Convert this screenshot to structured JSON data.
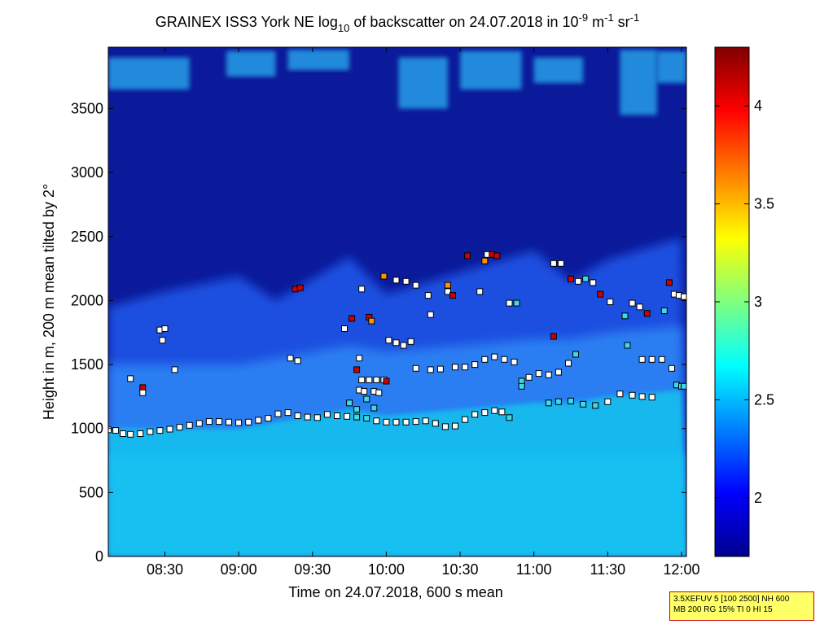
{
  "chart_data": {
    "type": "heatmap",
    "title": {
      "prefix": "GRAINEX ISS3 York NE log",
      "log_sub": "10",
      "middle": " of backscatter on 24.07.2018 in 10",
      "exp1": "-9",
      "unit_m": " m",
      "exp2": "-1",
      "unit_sr": " sr",
      "exp3": "-1"
    },
    "xlabel": "Time on 24.07.2018, 600 s mean",
    "ylabel": "Height in m, 200 m mean tilted by 2°",
    "x_range": [
      "08:07",
      "12:02"
    ],
    "y_range": [
      0,
      3980
    ],
    "x_ticks": [
      "08:30",
      "09:00",
      "09:30",
      "10:00",
      "10:30",
      "11:00",
      "11:30",
      "12:00"
    ],
    "y_ticks": [
      0,
      500,
      1000,
      1500,
      2000,
      2500,
      3000,
      3500
    ],
    "colorbar": {
      "range": [
        1.7,
        4.3
      ],
      "ticks": [
        2,
        2.5,
        3,
        3.5,
        4
      ],
      "colormap": "jet"
    },
    "field_description": {
      "boundary_layer_top_m": [
        1000,
        1000,
        1000,
        1050,
        1100,
        1150,
        1100,
        1150,
        1200,
        1200,
        1250,
        1300
      ],
      "times": [
        "08:07",
        "08:30",
        "09:00",
        "09:15",
        "09:30",
        "09:45",
        "10:00",
        "10:30",
        "11:00",
        "11:15",
        "11:30",
        "12:00"
      ]
    },
    "series": [
      {
        "marker": "square",
        "points": [
          {
            "t": "08:07",
            "h": 990,
            "c": 1.0
          },
          {
            "t": "08:10",
            "h": 985,
            "c": 1.0
          },
          {
            "t": "08:13",
            "h": 960,
            "c": 1.0
          },
          {
            "t": "08:16",
            "h": 955,
            "c": 1.0
          },
          {
            "t": "08:20",
            "h": 960,
            "c": 1.0
          },
          {
            "t": "08:24",
            "h": 975,
            "c": 1.0
          },
          {
            "t": "08:28",
            "h": 985,
            "c": 1.0
          },
          {
            "t": "08:32",
            "h": 995,
            "c": 1.0
          },
          {
            "t": "08:36",
            "h": 1010,
            "c": 1.0
          },
          {
            "t": "08:40",
            "h": 1025,
            "c": 1.0
          },
          {
            "t": "08:44",
            "h": 1040,
            "c": 1.0
          },
          {
            "t": "08:48",
            "h": 1055,
            "c": 1.0
          },
          {
            "t": "08:52",
            "h": 1055,
            "c": 1.0
          },
          {
            "t": "08:56",
            "h": 1050,
            "c": 1.0
          },
          {
            "t": "09:00",
            "h": 1045,
            "c": 1.0
          },
          {
            "t": "09:04",
            "h": 1050,
            "c": 1.0
          },
          {
            "t": "09:08",
            "h": 1065,
            "c": 1.0
          },
          {
            "t": "09:12",
            "h": 1080,
            "c": 1.0
          },
          {
            "t": "09:16",
            "h": 1115,
            "c": 1.0
          },
          {
            "t": "09:20",
            "h": 1125,
            "c": 1.0
          },
          {
            "t": "09:24",
            "h": 1100,
            "c": 1.0
          },
          {
            "t": "09:28",
            "h": 1090,
            "c": 1.0
          },
          {
            "t": "09:32",
            "h": 1085,
            "c": 1.0
          },
          {
            "t": "09:36",
            "h": 1110,
            "c": 1.0
          },
          {
            "t": "09:40",
            "h": 1100,
            "c": 1.0
          },
          {
            "t": "09:44",
            "h": 1095,
            "c": 1.0
          },
          {
            "t": "09:48",
            "h": 1090,
            "c": 0.6
          },
          {
            "t": "09:52",
            "h": 1080,
            "c": 0.6
          },
          {
            "t": "09:56",
            "h": 1060,
            "c": 1.0
          },
          {
            "t": "10:00",
            "h": 1050,
            "c": 1.0
          },
          {
            "t": "10:04",
            "h": 1050,
            "c": 1.0
          },
          {
            "t": "10:08",
            "h": 1050,
            "c": 1.0
          },
          {
            "t": "10:12",
            "h": 1055,
            "c": 1.0
          },
          {
            "t": "10:16",
            "h": 1060,
            "c": 1.0
          },
          {
            "t": "10:20",
            "h": 1040,
            "c": 1.0
          },
          {
            "t": "10:24",
            "h": 1015,
            "c": 1.0
          },
          {
            "t": "10:28",
            "h": 1020,
            "c": 1.0
          },
          {
            "t": "10:32",
            "h": 1070,
            "c": 1.0
          },
          {
            "t": "10:36",
            "h": 1110,
            "c": 1.0
          },
          {
            "t": "10:40",
            "h": 1125,
            "c": 1.0
          },
          {
            "t": "10:44",
            "h": 1140,
            "c": 1.0
          },
          {
            "t": "10:47",
            "h": 1130,
            "c": 1.0
          },
          {
            "t": "10:50",
            "h": 1085,
            "c": 0.6
          },
          {
            "t": "09:45",
            "h": 1200,
            "c": 0.6
          },
          {
            "t": "09:48",
            "h": 1150,
            "c": 0.6
          },
          {
            "t": "09:52",
            "h": 1230,
            "c": 0.6
          },
          {
            "t": "09:55",
            "h": 1160,
            "c": 0.6
          },
          {
            "t": "09:50",
            "h": 1380,
            "c": 1.0
          },
          {
            "t": "09:53",
            "h": 1380,
            "c": 1.0
          },
          {
            "t": "09:56",
            "h": 1380,
            "c": 1.0
          },
          {
            "t": "09:59",
            "h": 1380,
            "c": 1.0
          },
          {
            "t": "10:00",
            "h": 1370,
            "c": 4.1
          },
          {
            "t": "09:49",
            "h": 1300,
            "c": 1.0
          },
          {
            "t": "09:51",
            "h": 1290,
            "c": 1.0
          },
          {
            "t": "09:55",
            "h": 1290,
            "c": 1.0
          },
          {
            "t": "09:57",
            "h": 1280,
            "c": 1.0
          },
          {
            "t": "09:48",
            "h": 1460,
            "c": 4.1
          },
          {
            "t": "10:12",
            "h": 1470,
            "c": 1.0
          },
          {
            "t": "10:18",
            "h": 1460,
            "c": 1.0
          },
          {
            "t": "10:22",
            "h": 1465,
            "c": 1.0
          },
          {
            "t": "10:28",
            "h": 1480,
            "c": 1.0
          },
          {
            "t": "10:32",
            "h": 1480,
            "c": 1.0
          },
          {
            "t": "10:36",
            "h": 1500,
            "c": 1.0
          },
          {
            "t": "10:40",
            "h": 1540,
            "c": 1.0
          },
          {
            "t": "10:44",
            "h": 1560,
            "c": 1.0
          },
          {
            "t": "10:48",
            "h": 1540,
            "c": 1.0
          },
          {
            "t": "10:52",
            "h": 1520,
            "c": 1.0
          },
          {
            "t": "10:55",
            "h": 1370,
            "c": 0.6
          },
          {
            "t": "10:58",
            "h": 1400,
            "c": 1.0
          },
          {
            "t": "11:02",
            "h": 1430,
            "c": 1.0
          },
          {
            "t": "11:06",
            "h": 1420,
            "c": 1.0
          },
          {
            "t": "11:10",
            "h": 1440,
            "c": 1.0
          },
          {
            "t": "11:14",
            "h": 1510,
            "c": 1.0
          },
          {
            "t": "11:17",
            "h": 1580,
            "c": 0.6
          },
          {
            "t": "11:06",
            "h": 1200,
            "c": 0.6
          },
          {
            "t": "11:10",
            "h": 1210,
            "c": 0.6
          },
          {
            "t": "11:15",
            "h": 1215,
            "c": 0.6
          },
          {
            "t": "11:20",
            "h": 1190,
            "c": 0.6
          },
          {
            "t": "11:25",
            "h": 1180,
            "c": 0.6
          },
          {
            "t": "11:30",
            "h": 1210,
            "c": 1.0
          },
          {
            "t": "11:35",
            "h": 1270,
            "c": 1.0
          },
          {
            "t": "11:40",
            "h": 1260,
            "c": 1.0
          },
          {
            "t": "11:44",
            "h": 1250,
            "c": 1.0
          },
          {
            "t": "11:48",
            "h": 1245,
            "c": 1.0
          },
          {
            "t": "11:44",
            "h": 1540,
            "c": 1.0
          },
          {
            "t": "11:48",
            "h": 1540,
            "c": 1.0
          },
          {
            "t": "11:52",
            "h": 1540,
            "c": 1.0
          },
          {
            "t": "11:56",
            "h": 1470,
            "c": 1.0
          },
          {
            "t": "11:58",
            "h": 1340,
            "c": 0.6
          },
          {
            "t": "12:00",
            "h": 1330,
            "c": 0.6
          },
          {
            "t": "12:01",
            "h": 1330,
            "c": 0.6
          },
          {
            "t": "10:01",
            "h": 1690,
            "c": 1.0
          },
          {
            "t": "10:04",
            "h": 1670,
            "c": 1.0
          },
          {
            "t": "10:07",
            "h": 1650,
            "c": 1.0
          },
          {
            "t": "10:10",
            "h": 1680,
            "c": 1.0
          },
          {
            "t": "10:04",
            "h": 2160,
            "c": 1.0
          },
          {
            "t": "10:08",
            "h": 2150,
            "c": 1.0
          },
          {
            "t": "10:12",
            "h": 2120,
            "c": 1.0
          },
          {
            "t": "10:17",
            "h": 2040,
            "c": 1.0
          },
          {
            "t": "10:25",
            "h": 2070,
            "c": 1.0
          },
          {
            "t": "10:27",
            "h": 2040,
            "c": 4.1
          },
          {
            "t": "10:25",
            "h": 2120,
            "c": 3.6
          },
          {
            "t": "10:41",
            "h": 2360,
            "c": 1.0
          },
          {
            "t": "10:43",
            "h": 2360,
            "c": 4.1
          },
          {
            "t": "10:45",
            "h": 2350,
            "c": 4.1
          },
          {
            "t": "10:40",
            "h": 2310,
            "c": 3.6
          },
          {
            "t": "10:33",
            "h": 2350,
            "c": 4.1
          },
          {
            "t": "10:50",
            "h": 1980,
            "c": 1.0
          },
          {
            "t": "10:53",
            "h": 1980,
            "c": 0.6
          },
          {
            "t": "11:08",
            "h": 2290,
            "c": 1.0
          },
          {
            "t": "11:11",
            "h": 2290,
            "c": 1.0
          },
          {
            "t": "11:15",
            "h": 2170,
            "c": 4.1
          },
          {
            "t": "11:18",
            "h": 2150,
            "c": 1.0
          },
          {
            "t": "11:21",
            "h": 2170,
            "c": 0.6
          },
          {
            "t": "11:24",
            "h": 2140,
            "c": 1.0
          },
          {
            "t": "11:27",
            "h": 2050,
            "c": 4.1
          },
          {
            "t": "11:31",
            "h": 1990,
            "c": 1.0
          },
          {
            "t": "11:40",
            "h": 1980,
            "c": 1.0
          },
          {
            "t": "11:43",
            "h": 1950,
            "c": 1.0
          },
          {
            "t": "11:46",
            "h": 1900,
            "c": 4.1
          },
          {
            "t": "11:55",
            "h": 2140,
            "c": 4.1
          },
          {
            "t": "11:57",
            "h": 2050,
            "c": 1.0
          },
          {
            "t": "11:59",
            "h": 2040,
            "c": 1.0
          },
          {
            "t": "12:01",
            "h": 2030,
            "c": 1.0
          },
          {
            "t": "11:53",
            "h": 1920,
            "c": 0.6
          },
          {
            "t": "11:37",
            "h": 1880,
            "c": 0.6
          },
          {
            "t": "11:38",
            "h": 1650,
            "c": 0.6
          },
          {
            "t": "11:08",
            "h": 1720,
            "c": 4.1
          },
          {
            "t": "09:23",
            "h": 2090,
            "c": 4.1
          },
          {
            "t": "09:25",
            "h": 2100,
            "c": 4.1
          },
          {
            "t": "09:46",
            "h": 1860,
            "c": 4.1
          },
          {
            "t": "09:43",
            "h": 1780,
            "c": 1.0
          },
          {
            "t": "09:53",
            "h": 1870,
            "c": 4.1
          },
          {
            "t": "09:54",
            "h": 1840,
            "c": 3.6
          },
          {
            "t": "09:59",
            "h": 2190,
            "c": 3.6
          },
          {
            "t": "09:50",
            "h": 2090,
            "c": 1.0
          },
          {
            "t": "09:21",
            "h": 1550,
            "c": 1.0
          },
          {
            "t": "09:24",
            "h": 1530,
            "c": 1.0
          },
          {
            "t": "09:49",
            "h": 1550,
            "c": 1.0
          },
          {
            "t": "08:28",
            "h": 1770,
            "c": 1.0
          },
          {
            "t": "08:30",
            "h": 1780,
            "c": 1.0
          },
          {
            "t": "08:29",
            "h": 1690,
            "c": 1.0
          },
          {
            "t": "08:34",
            "h": 1460,
            "c": 1.0
          },
          {
            "t": "08:16",
            "h": 1390,
            "c": 1.0
          },
          {
            "t": "08:21",
            "h": 1320,
            "c": 4.1
          },
          {
            "t": "08:21",
            "h": 1280,
            "c": 1.0
          },
          {
            "t": "10:18",
            "h": 1890,
            "c": 1.0
          },
          {
            "t": "10:38",
            "h": 2070,
            "c": 1.0
          },
          {
            "t": "10:55",
            "h": 1330,
            "c": 0.6
          }
        ]
      }
    ]
  },
  "infobox": {
    "line1": "3.5XEFUV 5 [100 2500] NH 600",
    "line2": "MB 200 RG 15% TI 0 HI 15"
  }
}
